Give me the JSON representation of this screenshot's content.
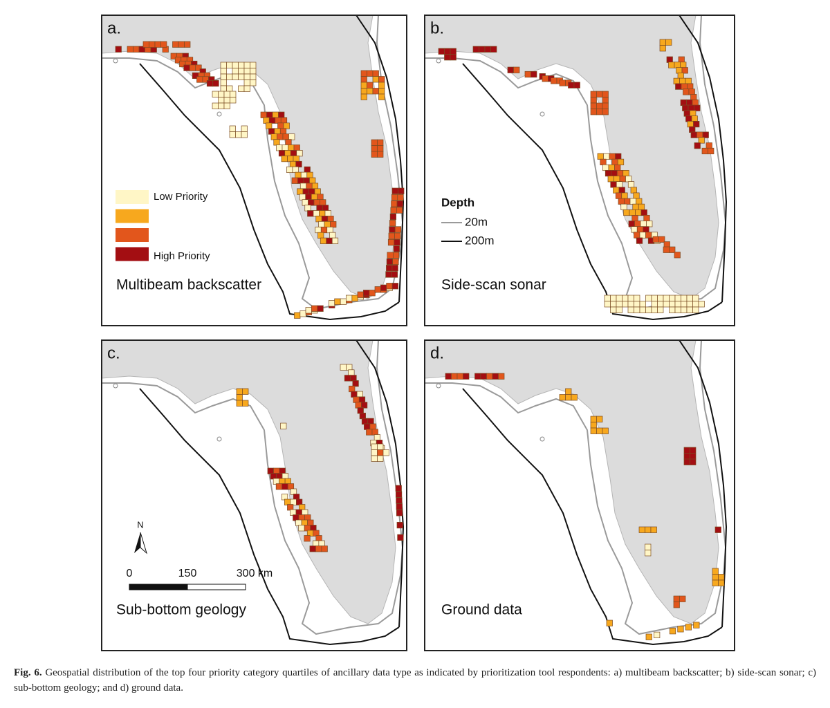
{
  "panels": [
    {
      "label": "a.",
      "title": "Multibeam backscatter"
    },
    {
      "label": "b.",
      "title": "Side-scan sonar"
    },
    {
      "label": "c.",
      "title": "Sub-bottom geology"
    },
    {
      "label": "d.",
      "title": "Ground data"
    }
  ],
  "priority_legend": {
    "low": "Low Priority",
    "high": "High Priority",
    "colors": [
      "#fff6c6",
      "#f7a81e",
      "#e2561c",
      "#a30e12"
    ]
  },
  "depth_legend": {
    "title": "Depth",
    "items": [
      "20m",
      "200m"
    ]
  },
  "north_arrow": "N",
  "scale_bar": {
    "ticks": [
      "0",
      "150",
      "300 km"
    ]
  },
  "caption": {
    "label": "Fig. 6.",
    "text": "Geospatial distribution of the top four priority category quartiles of ancillary data type as indicated by prioritization tool respondents: a) multibeam backscatter; b) side-scan sonar; c) sub-bottom geology; and d) ground data."
  }
}
